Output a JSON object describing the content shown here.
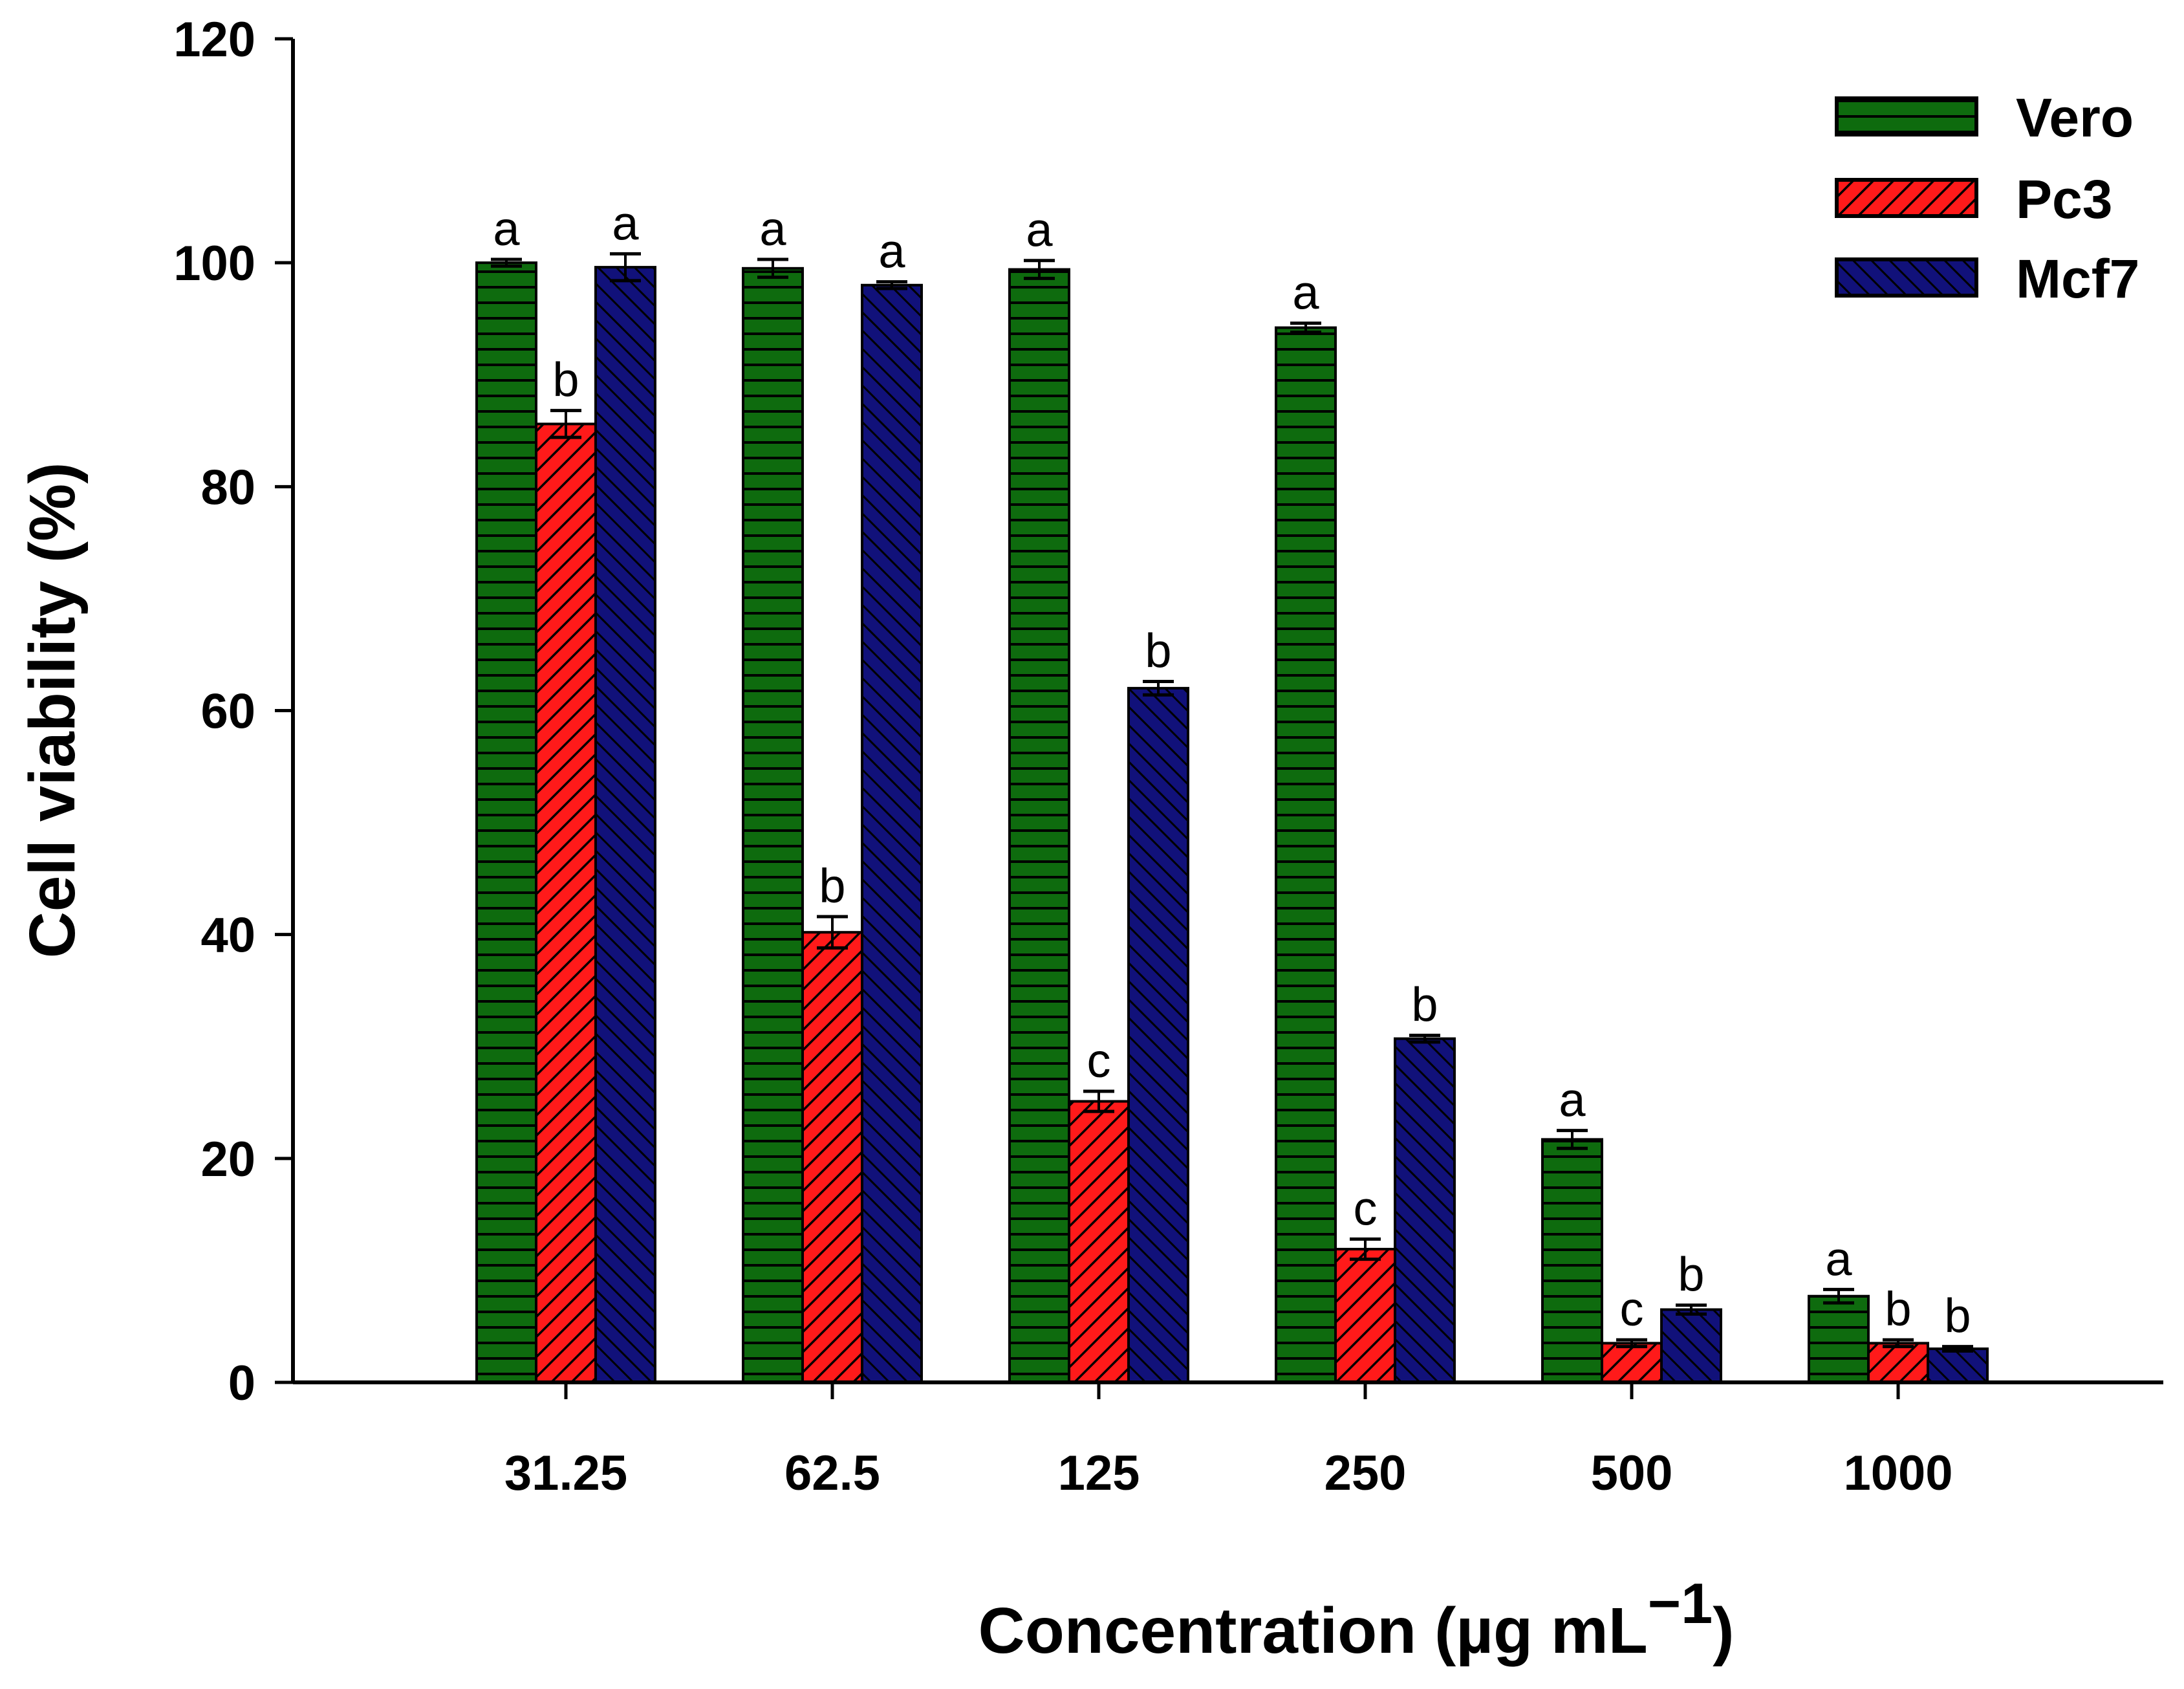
{
  "chart_data": {
    "type": "bar",
    "title": "",
    "xlabel": "Concentration (µg mL",
    "xlabel_superscript": "−1",
    "xlabel_close": ")",
    "ylabel": "Cell viability (%)",
    "ylim": [
      0,
      120
    ],
    "yticks": [
      0,
      20,
      40,
      60,
      80,
      100,
      120
    ],
    "ytick_labels": [
      "0",
      "20",
      "40",
      "60",
      "80",
      "100",
      "120"
    ],
    "categories": [
      "31.25",
      "62.5",
      "125",
      "250",
      "500",
      "1000"
    ],
    "legend_position": "top-right",
    "series": [
      {
        "name": "Vero",
        "color": "#0e6b0e",
        "pattern": "horizontal",
        "values": [
          100,
          99.5,
          99.4,
          94.2,
          21.7,
          7.7
        ],
        "errors": [
          0.3,
          0.8,
          0.8,
          0.4,
          0.8,
          0.6
        ],
        "labels": [
          "a",
          "a",
          "a",
          "a",
          "a",
          "a"
        ]
      },
      {
        "name": "Pc3",
        "color": "#ff1a1a",
        "pattern": "diagonal-down",
        "values": [
          85.6,
          40.2,
          25.1,
          11.9,
          3.5,
          3.5
        ],
        "errors": [
          1.2,
          1.4,
          0.9,
          0.9,
          0.3,
          0.3
        ],
        "labels": [
          "b",
          "b",
          "c",
          "c",
          "c",
          "b"
        ]
      },
      {
        "name": "Mcf7",
        "color": "#11117a",
        "pattern": "diagonal-up",
        "values": [
          99.6,
          98.0,
          62.0,
          30.7,
          6.5,
          3.0
        ],
        "errors": [
          1.2,
          0.3,
          0.6,
          0.3,
          0.4,
          0.2
        ],
        "labels": [
          "a",
          "a",
          "b",
          "b",
          "b",
          "b"
        ]
      }
    ]
  }
}
